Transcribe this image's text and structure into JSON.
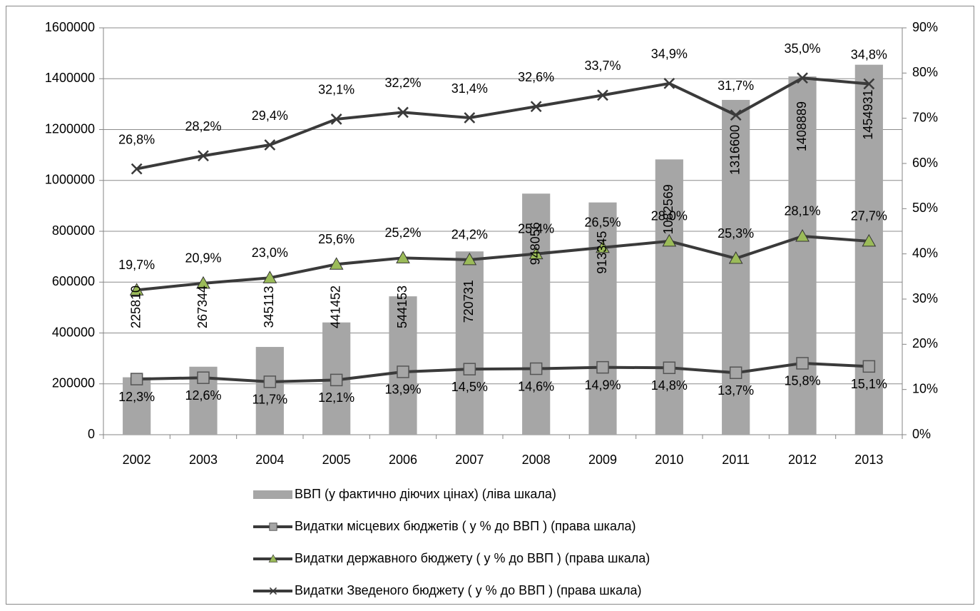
{
  "chart_data": {
    "type": "combo",
    "stacked": true,
    "categories": [
      "2002",
      "2003",
      "2004",
      "2005",
      "2006",
      "2007",
      "2008",
      "2009",
      "2010",
      "2011",
      "2012",
      "2013"
    ],
    "series": [
      {
        "name": "ВВП (у фактично діючих цінах) (ліва шкала)",
        "type": "bar",
        "axis": "y",
        "color": "#a6a6a6",
        "values": [
          225810,
          267344,
          345113,
          441452,
          544153,
          720731,
          948056,
          913345,
          1082569,
          1316600,
          1408889,
          1454931
        ]
      },
      {
        "name": "Видатки місцевих бюджетів ( у % до ВВП ) (права шкала)",
        "type": "line",
        "axis": "y2",
        "color": "#3a3a3a",
        "marker": "square",
        "marker_color": "#a6a6a6",
        "values": [
          12.3,
          12.6,
          11.7,
          12.1,
          13.9,
          14.5,
          14.6,
          14.9,
          14.8,
          13.7,
          15.8,
          15.1
        ],
        "value_labels": [
          "12,3%",
          "12,6%",
          "11,7%",
          "12,1%",
          "13,9%",
          "14,5%",
          "14,6%",
          "14,9%",
          "14,8%",
          "13,7%",
          "15,8%",
          "15,1%"
        ]
      },
      {
        "name": "Видатки державного бюджету ( у % до ВВП )  (права шкала)",
        "type": "line",
        "axis": "y2",
        "color": "#3a3a3a",
        "marker": "triangle",
        "marker_color": "#9bbb59",
        "values": [
          19.7,
          20.9,
          23.0,
          25.6,
          25.2,
          24.2,
          25.4,
          26.5,
          28.0,
          25.3,
          28.1,
          27.7
        ],
        "value_labels": [
          "19,7%",
          "20,9%",
          "23,0%",
          "25,6%",
          "25,2%",
          "24,2%",
          "25,4%",
          "26,5%",
          "28,0%",
          "25,3%",
          "28,1%",
          "27,7%"
        ]
      },
      {
        "name": "Видатки Зведеного бюджету ( у % до ВВП )  (права шкала)",
        "type": "line",
        "axis": "y2",
        "color": "#3a3a3a",
        "marker": "x",
        "marker_color": "#3a3a3a",
        "values": [
          26.8,
          28.2,
          29.4,
          32.1,
          32.2,
          31.4,
          32.6,
          33.7,
          34.9,
          31.7,
          35.0,
          34.8
        ],
        "value_labels": [
          "26,8%",
          "28,2%",
          "29,4%",
          "32,1%",
          "32,2%",
          "31,4%",
          "32,6%",
          "33,7%",
          "34,9%",
          "31,7%",
          "35,0%",
          "34,8%"
        ]
      }
    ],
    "ylim": [
      0,
      1600000
    ],
    "yticks": [
      0,
      200000,
      400000,
      600000,
      800000,
      1000000,
      1200000,
      1400000,
      1600000
    ],
    "y2lim": [
      0,
      90
    ],
    "y2ticks": [
      {
        "value": 0,
        "label": "0%"
      },
      {
        "value": 10,
        "label": "10%"
      },
      {
        "value": 20,
        "label": "20%"
      },
      {
        "value": 30,
        "label": "30%"
      },
      {
        "value": 40,
        "label": "40%"
      },
      {
        "value": 50,
        "label": "50%"
      },
      {
        "value": 60,
        "label": "60%"
      },
      {
        "value": 70,
        "label": "70%"
      },
      {
        "value": 80,
        "label": "80%"
      },
      {
        "value": 90,
        "label": "90%"
      }
    ],
    "grid": true,
    "legend": "bottom"
  }
}
